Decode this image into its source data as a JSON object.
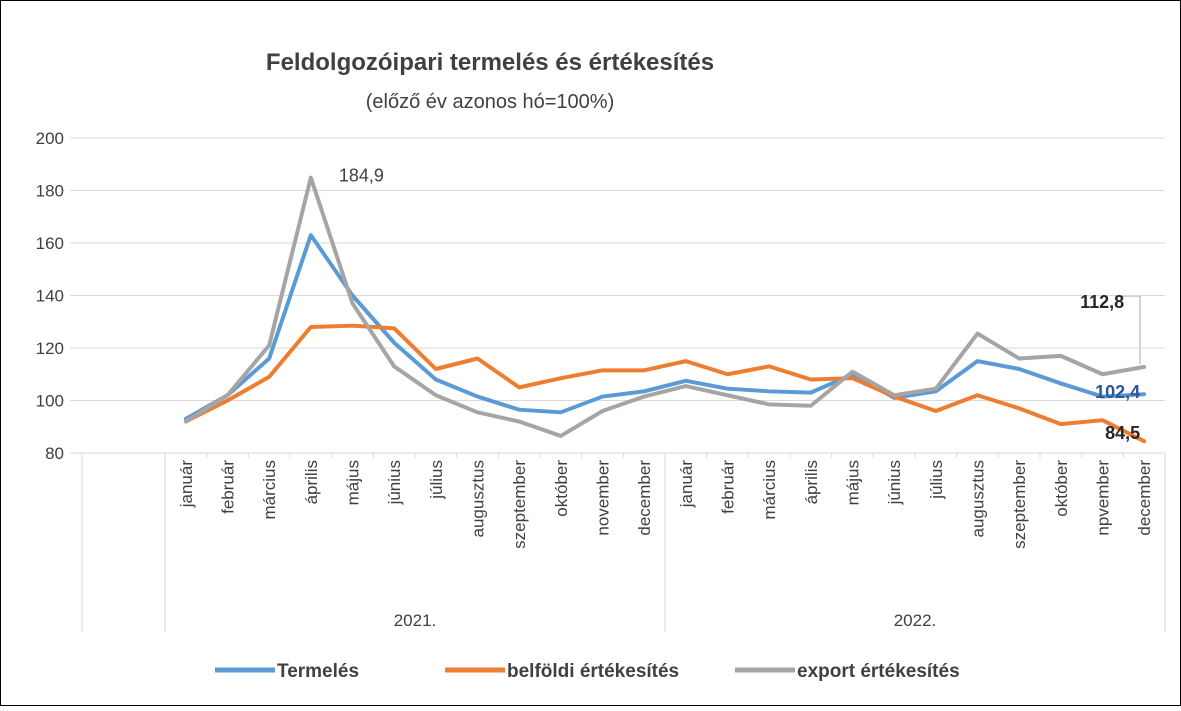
{
  "chart_data": {
    "type": "line",
    "title": "Feldolgozóipari termelés és értékesítés",
    "subtitle": "(előző év azonos hó=100%)",
    "categories": [
      "január",
      "február",
      "március",
      "április",
      "május",
      "június",
      "július",
      "augusztus",
      "szeptember",
      "október",
      "november",
      "december",
      "január",
      "február",
      "március",
      "április",
      "május",
      "június",
      "július",
      "augusztus",
      "szeptember",
      "október",
      "npvember",
      "december"
    ],
    "category_groups": [
      "2021.",
      "2022."
    ],
    "ylim": [
      80,
      200
    ],
    "yticks": [
      80,
      100,
      120,
      140,
      160,
      180,
      200
    ],
    "grid": true,
    "legend": "bottom",
    "series": [
      {
        "name": "Termelés",
        "color": "#5b9bd5",
        "values": [
          93,
          102,
          116,
          163,
          140,
          122,
          108,
          101.5,
          96.5,
          95.5,
          101.5,
          103.5,
          107.5,
          104.5,
          103.5,
          103,
          110,
          101,
          103.5,
          115,
          112,
          106.5,
          101.5,
          102.4
        ],
        "value_labels": [
          null,
          null,
          null,
          null,
          null,
          null,
          null,
          null,
          null,
          null,
          null,
          null,
          null,
          null,
          null,
          null,
          null,
          null,
          null,
          null,
          null,
          null,
          null,
          "102,4"
        ]
      },
      {
        "name": "belföldi értékesítés",
        "color": "#ed7d31",
        "values": [
          92,
          100,
          109,
          128,
          128.5,
          127.5,
          112,
          116,
          105,
          108.5,
          111.5,
          111.5,
          115,
          110,
          113,
          108,
          108.5,
          101.5,
          96,
          102,
          97,
          91,
          92.5,
          84.5
        ],
        "value_labels": [
          null,
          null,
          null,
          null,
          null,
          null,
          null,
          null,
          null,
          null,
          null,
          null,
          null,
          null,
          null,
          null,
          null,
          null,
          null,
          null,
          null,
          null,
          null,
          "84,5"
        ]
      },
      {
        "name": "export értékesítés",
        "color": "#a5a5a5",
        "values": [
          92,
          102,
          121,
          184.9,
          137,
          113,
          102,
          95.5,
          92,
          86.5,
          96,
          101.5,
          105.5,
          102,
          98.5,
          98,
          111,
          102,
          104.5,
          125.5,
          116,
          117,
          110,
          112.8
        ],
        "value_labels": [
          null,
          null,
          null,
          "184,9",
          null,
          null,
          null,
          null,
          null,
          null,
          null,
          null,
          null,
          null,
          null,
          null,
          null,
          null,
          null,
          null,
          null,
          null,
          null,
          "112,8"
        ]
      }
    ]
  }
}
